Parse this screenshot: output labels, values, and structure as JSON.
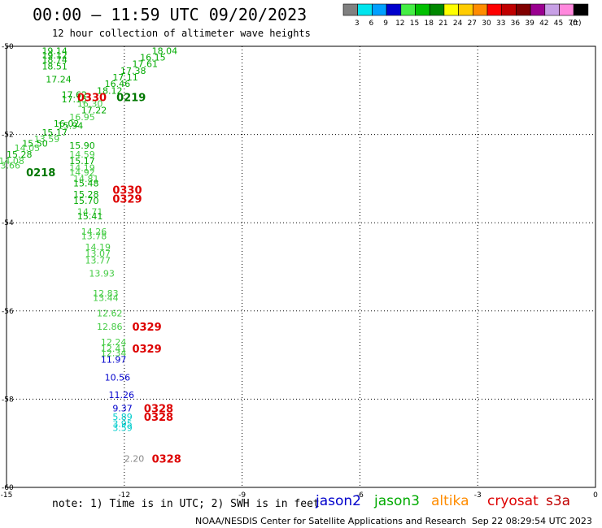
{
  "header": {
    "title": "00:00 – 11:59 UTC 09/20/2023",
    "subtitle": "12 hour collection of altimeter wave heights"
  },
  "legend": {
    "unit": "(ft)",
    "bins": [
      {
        "label": "3",
        "color": "#808080"
      },
      {
        "label": "6",
        "color": "#00e5ee"
      },
      {
        "label": "9",
        "color": "#00a0ff"
      },
      {
        "label": "12",
        "color": "#0000cd"
      },
      {
        "label": "15",
        "color": "#44ee44"
      },
      {
        "label": "18",
        "color": "#00c000"
      },
      {
        "label": "21",
        "color": "#008800"
      },
      {
        "label": "24",
        "color": "#ffff00"
      },
      {
        "label": "27",
        "color": "#ffcc00"
      },
      {
        "label": "30",
        "color": "#ff8c00"
      },
      {
        "label": "33",
        "color": "#ff0000"
      },
      {
        "label": "36",
        "color": "#c00000"
      },
      {
        "label": "39",
        "color": "#800000"
      },
      {
        "label": "42",
        "color": "#9a0090"
      },
      {
        "label": "45",
        "color": "#c8a0e6"
      },
      {
        "label": "70",
        "color": "#ff88dd"
      },
      {
        "label": "",
        "color": "#000000"
      }
    ]
  },
  "axes": {
    "lon_ticks": [
      "-15",
      "-12",
      "-9",
      "-6",
      "-3",
      "0"
    ],
    "lat_ticks": [
      "-50",
      "-52",
      "-54",
      "-56",
      "-58",
      "-60"
    ],
    "lon_range": [
      -15,
      0
    ],
    "lat_range": [
      -60,
      -50
    ]
  },
  "map_data": {
    "colors": {
      "light_green": "#44cc44",
      "green": "#00aa00",
      "dark_green": "#007700",
      "blue": "#0000cc",
      "cyan": "#00cccc",
      "gray": "#888888",
      "red": "#dd0000"
    },
    "heights": [
      {
        "text": "19.14",
        "c": "green",
        "lon": -14.1,
        "lat": -50.1
      },
      {
        "text": "19.12",
        "c": "green",
        "lon": -14.1,
        "lat": -50.2
      },
      {
        "text": "18.74",
        "c": "green",
        "lon": -14.1,
        "lat": -50.3
      },
      {
        "text": "18.51",
        "c": "green",
        "lon": -14.1,
        "lat": -50.45
      },
      {
        "text": "18.04",
        "c": "green",
        "lon": -11.3,
        "lat": -50.1
      },
      {
        "text": "16.15",
        "c": "green",
        "lon": -11.6,
        "lat": -50.25
      },
      {
        "text": "17.61",
        "c": "green",
        "lon": -11.8,
        "lat": -50.4
      },
      {
        "text": "17.38",
        "c": "green",
        "lon": -12.1,
        "lat": -50.55
      },
      {
        "text": "17.24",
        "c": "green",
        "lon": -14.0,
        "lat": -50.75
      },
      {
        "text": "17.11",
        "c": "green",
        "lon": -12.3,
        "lat": -50.7
      },
      {
        "text": "16.46",
        "c": "green",
        "lon": -12.5,
        "lat": -50.85
      },
      {
        "text": "18.12",
        "c": "green",
        "lon": -12.7,
        "lat": -51.0
      },
      {
        "text": "17.62",
        "c": "green",
        "lon": -13.6,
        "lat": -51.1
      },
      {
        "text": "17.15",
        "c": "green",
        "lon": -13.6,
        "lat": -51.2
      },
      {
        "text": "16.30",
        "c": "light_green",
        "lon": -13.2,
        "lat": -51.3
      },
      {
        "text": "17.22",
        "c": "green",
        "lon": -13.1,
        "lat": -51.45
      },
      {
        "text": "16.95",
        "c": "light_green",
        "lon": -13.4,
        "lat": -51.6
      },
      {
        "text": "16.02",
        "c": "green",
        "lon": -13.8,
        "lat": -51.75
      },
      {
        "text": "15.94",
        "c": "green",
        "lon": -13.7,
        "lat": -51.8
      },
      {
        "text": "15.17",
        "c": "green",
        "lon": -14.1,
        "lat": -51.95
      },
      {
        "text": "13.59",
        "c": "light_green",
        "lon": -14.3,
        "lat": -52.1
      },
      {
        "text": "15.50",
        "c": "green",
        "lon": -14.6,
        "lat": -52.2
      },
      {
        "text": "15.90",
        "c": "green",
        "lon": -13.4,
        "lat": -52.25
      },
      {
        "text": "14.05",
        "c": "light_green",
        "lon": -14.8,
        "lat": -52.3
      },
      {
        "text": "15.28",
        "c": "green",
        "lon": -15.0,
        "lat": -52.45
      },
      {
        "text": "14.59",
        "c": "light_green",
        "lon": -13.4,
        "lat": -52.45
      },
      {
        "text": "14.08",
        "c": "light_green",
        "lon": -15.2,
        "lat": -52.6
      },
      {
        "text": "15.17",
        "c": "green",
        "lon": -13.4,
        "lat": -52.6
      },
      {
        "text": "13.66",
        "c": "light_green",
        "lon": -15.3,
        "lat": -52.7
      },
      {
        "text": "14.19",
        "c": "light_green",
        "lon": -13.4,
        "lat": -52.75
      },
      {
        "text": "14.92",
        "c": "light_green",
        "lon": -13.4,
        "lat": -52.85
      },
      {
        "text": "14.81",
        "c": "light_green",
        "lon": -13.3,
        "lat": -53.0
      },
      {
        "text": "15.48",
        "c": "green",
        "lon": -13.3,
        "lat": -53.1
      },
      {
        "text": "15.28",
        "c": "green",
        "lon": -13.3,
        "lat": -53.35
      },
      {
        "text": "15.70",
        "c": "green",
        "lon": -13.3,
        "lat": -53.5
      },
      {
        "text": "14.71",
        "c": "light_green",
        "lon": -13.2,
        "lat": -53.75
      },
      {
        "text": "15.41",
        "c": "green",
        "lon": -13.2,
        "lat": -53.85
      },
      {
        "text": "14.26",
        "c": "light_green",
        "lon": -13.1,
        "lat": -54.2
      },
      {
        "text": "13.78",
        "c": "light_green",
        "lon": -13.1,
        "lat": -54.3
      },
      {
        "text": "14.19",
        "c": "light_green",
        "lon": -13.0,
        "lat": -54.55
      },
      {
        "text": "13.07",
        "c": "light_green",
        "lon": -13.0,
        "lat": -54.7
      },
      {
        "text": "13.77",
        "c": "light_green",
        "lon": -13.0,
        "lat": -54.85
      },
      {
        "text": "13.93",
        "c": "light_green",
        "lon": -12.9,
        "lat": -55.15
      },
      {
        "text": "12.83",
        "c": "light_green",
        "lon": -12.8,
        "lat": -55.6
      },
      {
        "text": "13.44",
        "c": "light_green",
        "lon": -12.8,
        "lat": -55.7
      },
      {
        "text": "12.62",
        "c": "light_green",
        "lon": -12.7,
        "lat": -56.05
      },
      {
        "text": "12.86",
        "c": "light_green",
        "lon": -12.7,
        "lat": -56.35
      },
      {
        "text": "12.24",
        "c": "light_green",
        "lon": -12.6,
        "lat": -56.7
      },
      {
        "text": "12.41",
        "c": "light_green",
        "lon": -12.6,
        "lat": -56.85
      },
      {
        "text": "12.34",
        "c": "light_green",
        "lon": -12.6,
        "lat": -56.95
      },
      {
        "text": "11.97",
        "c": "blue",
        "lon": -12.6,
        "lat": -57.1
      },
      {
        "text": "10.56",
        "c": "blue",
        "lon": -12.5,
        "lat": -57.5
      },
      {
        "text": "11.26",
        "c": "blue",
        "lon": -12.4,
        "lat": -57.9
      },
      {
        "text": "9.37",
        "c": "blue",
        "lon": -12.3,
        "lat": -58.2
      },
      {
        "text": "5.89",
        "c": "cyan",
        "lon": -12.3,
        "lat": -58.4
      },
      {
        "text": "3.95",
        "c": "cyan",
        "lon": -12.3,
        "lat": -58.55
      },
      {
        "text": "3.59",
        "c": "cyan",
        "lon": -12.3,
        "lat": -58.65
      },
      {
        "text": "2.20",
        "c": "gray",
        "lon": -12.0,
        "lat": -59.35
      }
    ],
    "times": [
      {
        "text": "0330",
        "c": "red",
        "lon": -13.2,
        "lat": -51.15
      },
      {
        "text": "0219",
        "c": "dark_green",
        "lon": -12.2,
        "lat": -51.15
      },
      {
        "text": "0218",
        "c": "dark_green",
        "lon": -14.5,
        "lat": -52.85
      },
      {
        "text": "0330",
        "c": "red",
        "lon": -12.3,
        "lat": -53.25
      },
      {
        "text": "0329",
        "c": "red",
        "lon": -12.3,
        "lat": -53.45
      },
      {
        "text": "0329",
        "c": "red",
        "lon": -11.8,
        "lat": -56.35
      },
      {
        "text": "0329",
        "c": "red",
        "lon": -11.8,
        "lat": -56.85
      },
      {
        "text": "0328",
        "c": "red",
        "lon": -11.5,
        "lat": -58.2
      },
      {
        "text": "0328",
        "c": "red",
        "lon": -11.5,
        "lat": -58.4
      },
      {
        "text": "0328",
        "c": "red",
        "lon": -11.3,
        "lat": -59.35
      }
    ]
  },
  "footer": {
    "note": "note: 1) Time is in UTC; 2) SWH is in feet",
    "satellites": [
      {
        "name": "jason2",
        "color": "#0000cc"
      },
      {
        "name": "jason3",
        "color": "#00aa00"
      },
      {
        "name": "altika",
        "color": "#ff8c00"
      },
      {
        "name": "cryosat",
        "color": "#dd0000"
      },
      {
        "name": "s3a",
        "color": "#c00000"
      }
    ],
    "credit": "NOAA/NESDIS Center for Satellite Applications and Research",
    "timestamp": "Sep 22 08:29:54 UTC 2023"
  }
}
